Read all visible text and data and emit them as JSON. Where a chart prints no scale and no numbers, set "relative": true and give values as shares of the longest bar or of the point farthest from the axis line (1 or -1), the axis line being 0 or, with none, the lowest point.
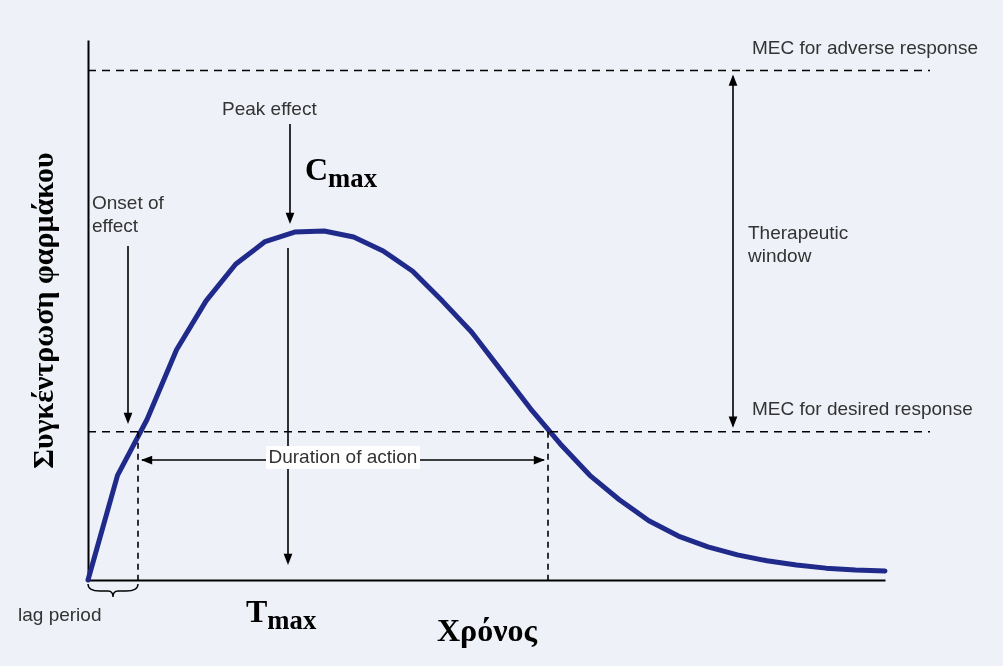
{
  "chart_data": {
    "type": "line",
    "relative": true,
    "ylabel": "Συγκέντρωση φαρμάκου",
    "xlabel": "Χρόνος",
    "categories": [
      null,
      null,
      null,
      null,
      null,
      null,
      null,
      null,
      null,
      null,
      null,
      null,
      null,
      null,
      null,
      null,
      null,
      null,
      null,
      null,
      null,
      null,
      null,
      null,
      null,
      null,
      null,
      null
    ],
    "series": [
      {
        "color": "#1f2a8a",
        "values": [
          0,
          0.3,
          0.46,
          0.66,
          0.8,
          0.905,
          0.97,
          0.997,
          1,
          0.983,
          0.943,
          0.885,
          0.8,
          0.71,
          0.6,
          0.49,
          0.39,
          0.3,
          0.23,
          0.17,
          0.126,
          0.095,
          0.072,
          0.055,
          0.043,
          0.034,
          0.029,
          0.026
        ]
      }
    ],
    "ref_lines": [
      {
        "axis": "y",
        "value": 1.46,
        "label": "MEC for adverse response",
        "color": "#000000",
        "line_style": "dashed"
      },
      {
        "axis": "y",
        "value": 0.425,
        "label": "MEC for desired response",
        "color": "#000000",
        "line_style": "dashed"
      }
    ],
    "annotations": [
      "Peak effect",
      "C$_{max}$",
      "Onset of effect",
      "T$_{max}$",
      "Therapeutic window",
      "Duration of action",
      "lag period"
    ],
    "marker": "none",
    "line_style": "solid",
    "grid": false,
    "legend": false
  }
}
